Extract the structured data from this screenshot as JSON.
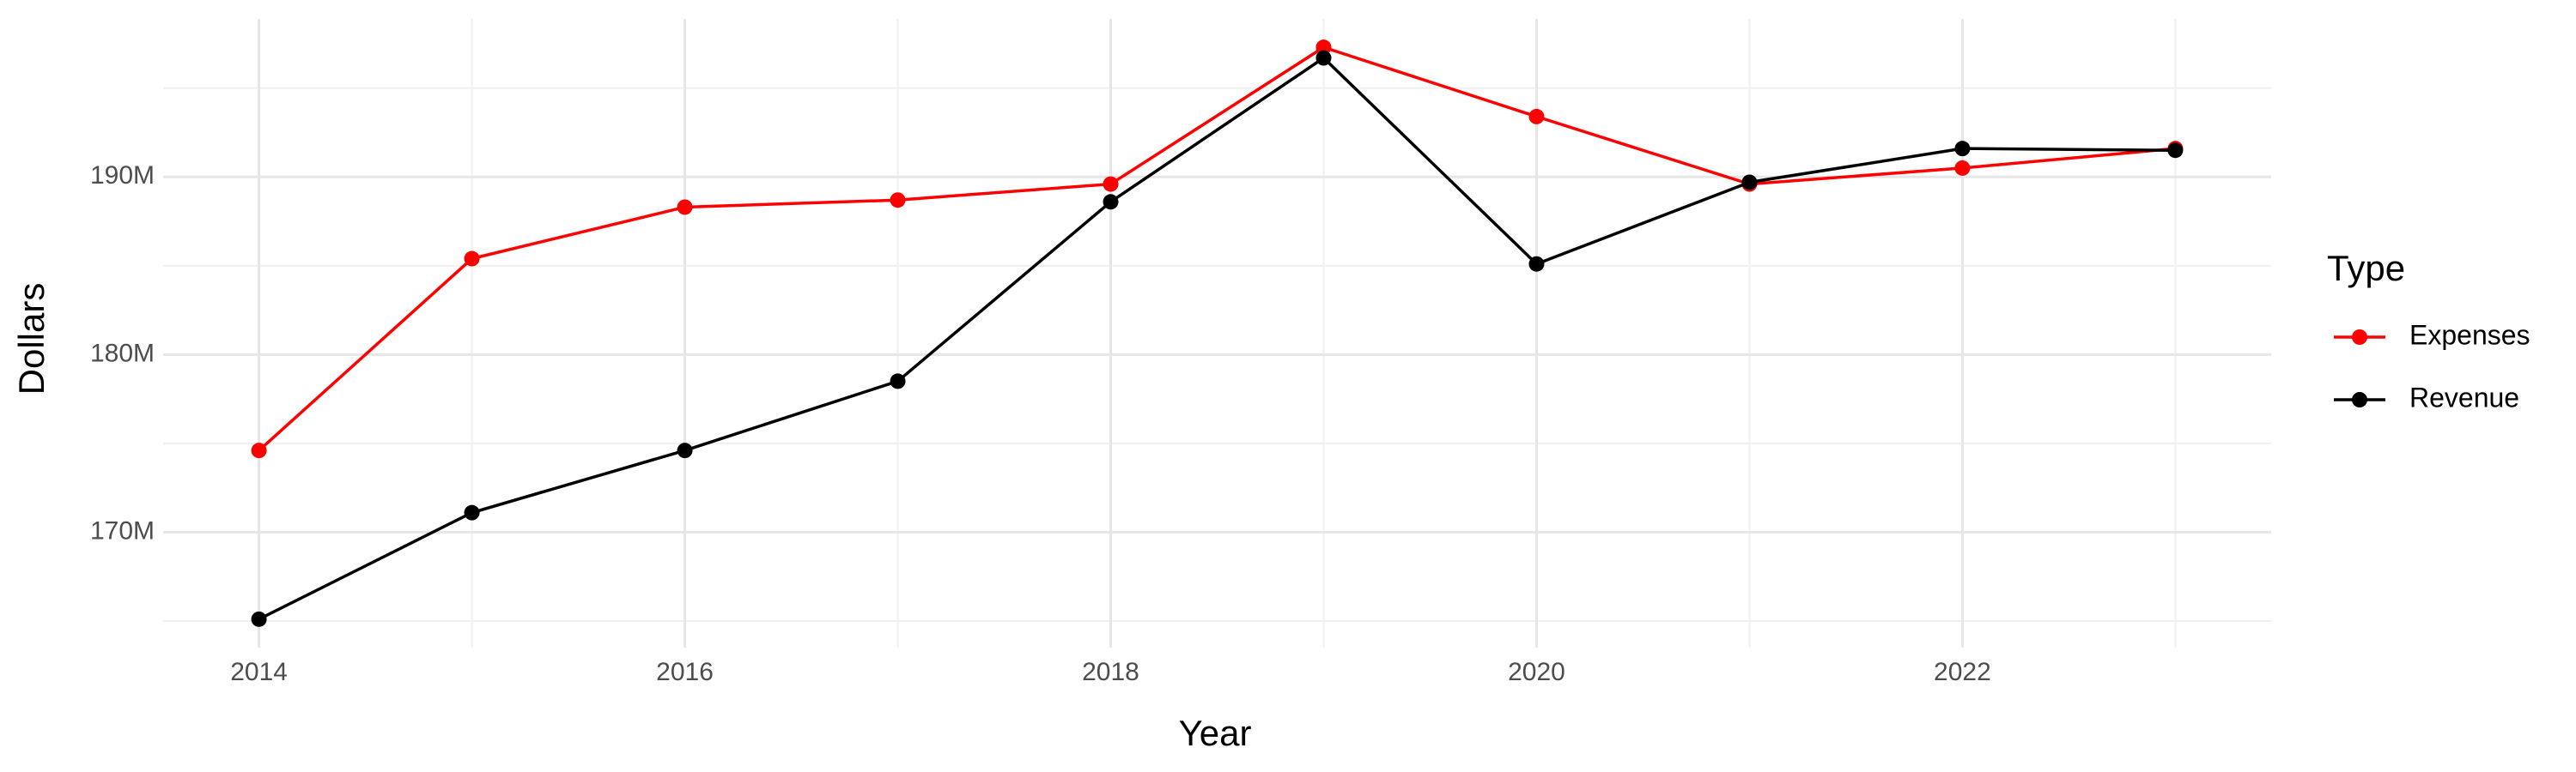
{
  "chart_data": {
    "type": "line",
    "x_label": "Year",
    "y_label": "Dollars",
    "legend_title": "Type",
    "legend_position": "right",
    "grid": true,
    "x": [
      2014,
      2015,
      2016,
      2017,
      2018,
      2019,
      2020,
      2021,
      2022,
      2023
    ],
    "series": [
      {
        "name": "Expenses",
        "color": "#ff0000",
        "values": [
          174600000,
          185400000,
          188300000,
          188700000,
          189600000,
          197300000,
          193400000,
          189600000,
          190500000,
          191600000
        ]
      },
      {
        "name": "Revenue",
        "color": "#000000",
        "values": [
          165100000,
          171100000,
          174600000,
          178500000,
          188600000,
          196700000,
          185100000,
          189700000,
          191600000,
          191500000
        ]
      }
    ],
    "xlim": [
      2013.55,
      2023.45
    ],
    "xticks": [
      2014,
      2016,
      2018,
      2020,
      2022
    ],
    "x_minor_ticks": [
      2015,
      2017,
      2019,
      2021,
      2023
    ],
    "ylim": [
      163500000,
      198900000
    ],
    "yticks": [
      {
        "value": 170000000,
        "label": "170M"
      },
      {
        "value": 180000000,
        "label": "180M"
      },
      {
        "value": 190000000,
        "label": "190M"
      }
    ],
    "y_minor_ticks": [
      165000000,
      175000000,
      185000000,
      195000000
    ]
  }
}
